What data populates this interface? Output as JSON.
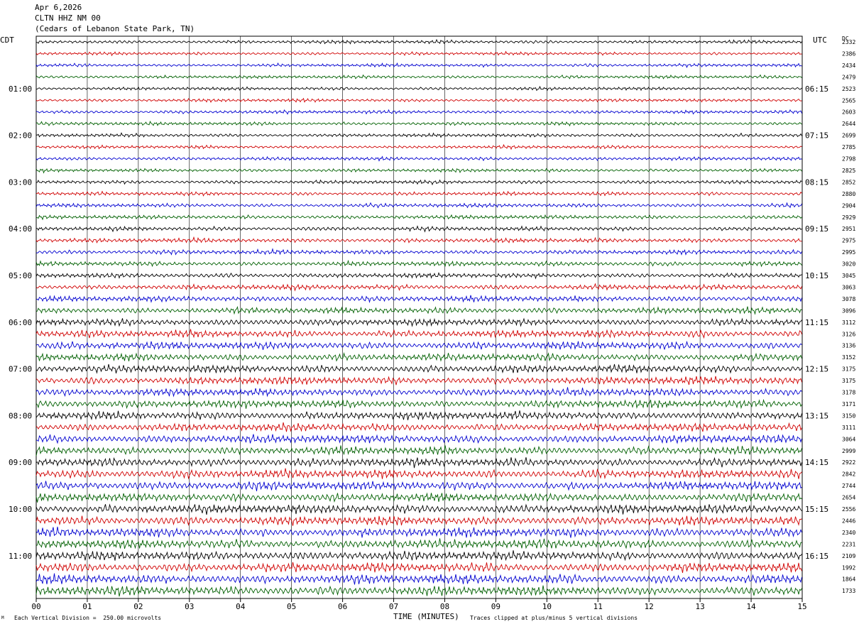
{
  "header": {
    "date": "Apr 6,2026",
    "station": "CLTN HHZ NM 00",
    "location": "(Cedars of Lebanon State Park, TN)"
  },
  "left_timezone": "CDT",
  "right_timezone": "UTC",
  "dc_label": "DC",
  "footer": {
    "scale_marker": "M",
    "scale_note": "Each Vertical Division =  250.00 microvolts",
    "xaxis_title": "TIME (MINUTES)",
    "clip_note": "Traces clipped at plus/minus 5 vertical divisions"
  },
  "colors": {
    "trace_cycle": [
      "#000000",
      "#d00000",
      "#0000d0",
      "#006000"
    ],
    "grid": "#000000",
    "background": "#ffffff"
  },
  "chart_data": {
    "type": "line",
    "description_kind": "helicorder",
    "x_ticks": [
      "00",
      "01",
      "02",
      "03",
      "04",
      "05",
      "06",
      "07",
      "08",
      "09",
      "10",
      "11",
      "12",
      "13",
      "14",
      "15"
    ],
    "xlim": [
      0,
      15
    ],
    "left_hour_labels": [
      "01:00",
      "02:00",
      "03:00",
      "04:00",
      "05:00",
      "06:00",
      "07:00",
      "08:00",
      "09:00",
      "10:00",
      "11:00"
    ],
    "right_hour_labels": [
      "06:15",
      "07:15",
      "08:15",
      "09:15",
      "10:15",
      "11:15",
      "12:15",
      "13:15",
      "14:15",
      "15:15",
      "16:15"
    ],
    "dc_offsets": [
      2332,
      2386,
      2434,
      2479,
      2523,
      2565,
      2603,
      2644,
      2699,
      2785,
      2798,
      2825,
      2852,
      2880,
      2904,
      2929,
      2951,
      2975,
      2995,
      3020,
      3045,
      3063,
      3078,
      3096,
      3112,
      3126,
      3136,
      3152,
      3175,
      3175,
      3178,
      3171,
      3150,
      3111,
      3064,
      2999,
      2922,
      2842,
      2744,
      2654,
      2556,
      2446,
      2340,
      2231,
      2109,
      1992,
      1864,
      1733
    ],
    "trace_amplitude_level": [
      0.28,
      0.24,
      0.26,
      0.26,
      0.26,
      0.26,
      0.28,
      0.28,
      0.28,
      0.26,
      0.28,
      0.28,
      0.3,
      0.3,
      0.32,
      0.32,
      0.34,
      0.36,
      0.36,
      0.38,
      0.4,
      0.42,
      0.46,
      0.5,
      0.55,
      0.58,
      0.6,
      0.6,
      0.62,
      0.62,
      0.6,
      0.62,
      0.64,
      0.64,
      0.66,
      0.66,
      0.68,
      0.7,
      0.7,
      0.7,
      0.72,
      0.72,
      0.74,
      0.74,
      0.74,
      0.74,
      0.76,
      0.76
    ]
  }
}
